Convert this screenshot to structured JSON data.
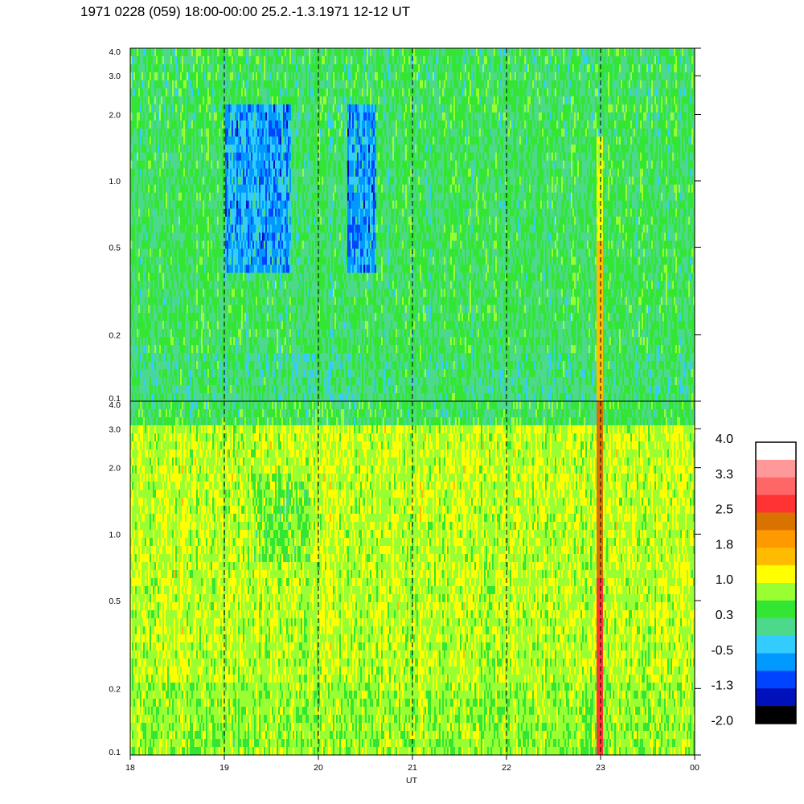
{
  "chart_data": {
    "type": "heatmap",
    "title": "1971 0228 (059) 18:00-00:00 25.2.-1.3.1971  12-12 UT",
    "xlabel": "UT",
    "x_ticks": [
      "18",
      "19",
      "20",
      "21",
      "22",
      "23",
      "00"
    ],
    "x_range_hours": [
      18,
      24
    ],
    "y_scale": "log",
    "panels": [
      {
        "name": "upper",
        "ylim": [
          0.1,
          4.0
        ],
        "y_ticks": [
          "4.0",
          "3.0",
          "2.0",
          "1.0",
          "0.5",
          "0.2",
          "0.1"
        ],
        "dominant_levels": [
          "0.3",
          "-0.5"
        ],
        "depleted_intervals_hours": [
          [
            19.0,
            19.7
          ],
          [
            20.3,
            20.6
          ]
        ],
        "enhanced_interval_hours": [
          22.95,
          23.02
        ]
      },
      {
        "name": "lower",
        "ylim": [
          0.1,
          4.0
        ],
        "y_ticks": [
          "4.0",
          "3.0",
          "2.0",
          "1.0",
          "0.5",
          "0.2",
          "0.1"
        ],
        "dominant_levels": [
          "1.0",
          "1.8"
        ],
        "enhanced_interval_hours": [
          22.95,
          23.02
        ]
      }
    ],
    "colorbar": {
      "ticks": [
        "4.0",
        "3.3",
        "2.5",
        "1.8",
        "1.0",
        "0.3",
        "-0.5",
        "-1.3",
        "-2.0"
      ],
      "colors": [
        "#ffffff",
        "#ff9999",
        "#ff6666",
        "#ff3333",
        "#d97300",
        "#ff9900",
        "#ffbb00",
        "#ffff00",
        "#99ff33",
        "#33e633",
        "#4dd98c",
        "#33ccff",
        "#0099ff",
        "#0044ff",
        "#0011bb",
        "#000000"
      ]
    },
    "grid": "vertical dashed lines at each hour"
  }
}
